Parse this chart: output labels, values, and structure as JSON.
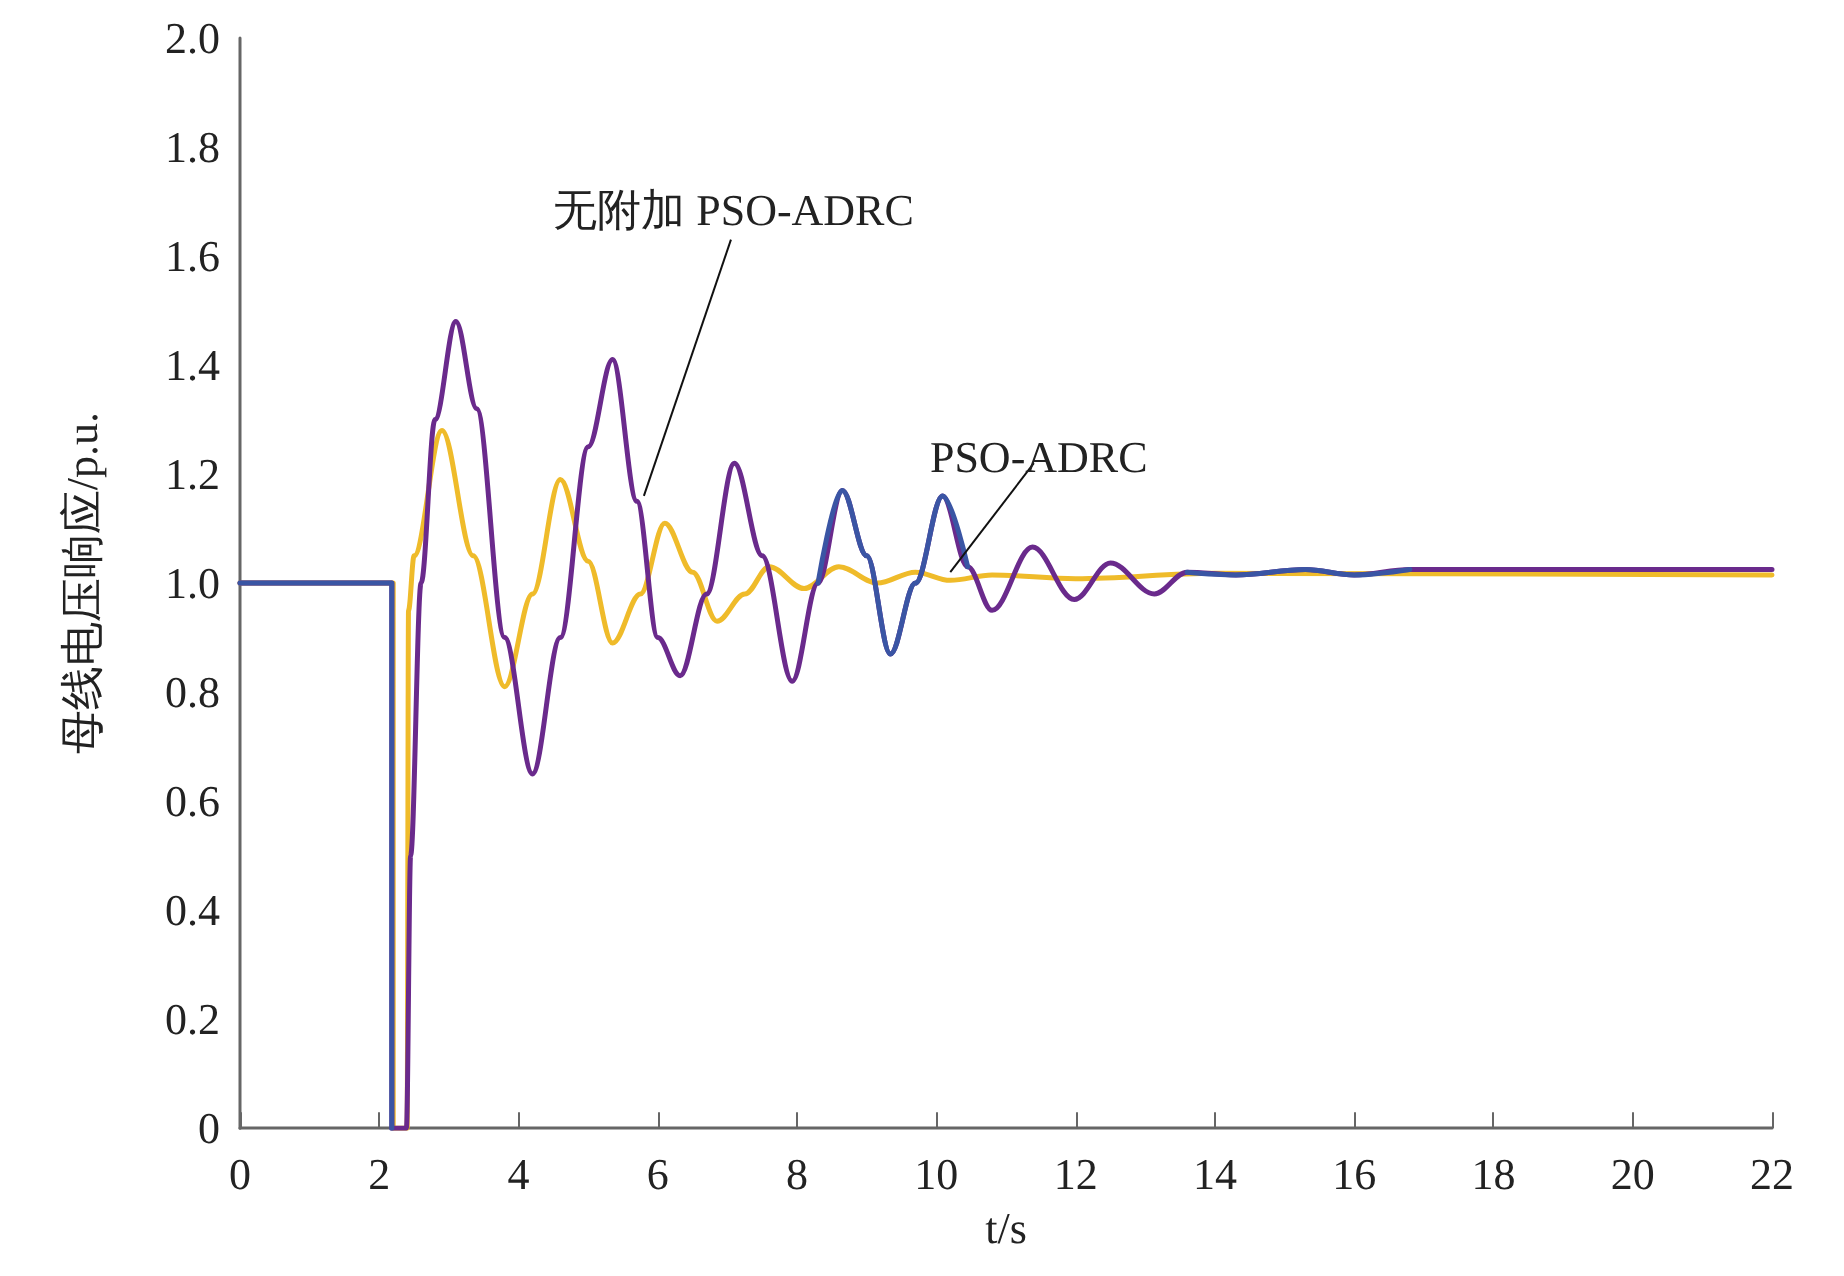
{
  "chart_data": {
    "type": "line",
    "xlabel": "t/s",
    "ylabel": "母线电压响应/p.u.",
    "xlim": [
      0,
      22
    ],
    "xticks": [
      0,
      2,
      4,
      6,
      8,
      10,
      12,
      14,
      16,
      18,
      20,
      22
    ],
    "ylim": [
      0,
      2.0
    ],
    "yticks": [
      {
        "value": 0,
        "label": "0"
      },
      {
        "value": 0.2,
        "label": "0.2"
      },
      {
        "value": 0.4,
        "label": "0.4"
      },
      {
        "value": 0.6,
        "label": "0.6"
      },
      {
        "value": 0.8,
        "label": "0.8"
      },
      {
        "value": 1.0,
        "label": "1.0"
      },
      {
        "value": 1.2,
        "label": "1.2"
      },
      {
        "value": 1.4,
        "label": "1.4"
      },
      {
        "value": 1.6,
        "label": "1.6"
      },
      {
        "value": 1.8,
        "label": "1.8"
      },
      {
        "value": 2.0,
        "label": "2.0"
      }
    ],
    "grid": false,
    "marker": "none",
    "line_style": "solid",
    "annotations": [
      {
        "text": "无附加 PSO-ADRC",
        "x": 5.8,
        "y": 1.16
      },
      {
        "text": "PSO-ADRC",
        "x": 10.2,
        "y": 1.02
      }
    ],
    "series": [
      {
        "color": "#efbb2a",
        "x": [
          0,
          2.2,
          2.2,
          2.4,
          2.42,
          2.5,
          2.9,
          3.35,
          3.8,
          4.2,
          4.6,
          5.0,
          5.35,
          5.75,
          6.1,
          6.5,
          6.85,
          7.25,
          7.6,
          8.1,
          8.6,
          9.15,
          9.7,
          10.2,
          10.8,
          12,
          14,
          22
        ],
        "values": [
          1.0,
          1.0,
          0,
          0,
          0.95,
          1.05,
          1.28,
          1.05,
          0.81,
          0.98,
          1.19,
          1.04,
          0.89,
          0.98,
          1.11,
          1.02,
          0.93,
          0.98,
          1.03,
          0.99,
          1.03,
          1.0,
          1.02,
          1.005,
          1.015,
          1.008,
          1.018,
          1.015
        ]
      },
      {
        "color": "#6a2a8c",
        "x": [
          0,
          2.18,
          2.18,
          2.39,
          2.45,
          2.6,
          2.8,
          3.1,
          3.4,
          3.8,
          4.2,
          4.6,
          5.0,
          5.35,
          5.7,
          6.0,
          6.32,
          6.7,
          7.1,
          7.5,
          7.93,
          8.3,
          8.65,
          9.0,
          9.34,
          9.7,
          10.09,
          10.45,
          10.8,
          11.38,
          11.98,
          12.5,
          13.13,
          13.6,
          14.3,
          15.3,
          16.0,
          16.8,
          22
        ],
        "values": [
          1.0,
          1.0,
          0,
          0,
          0.5,
          1.0,
          1.3,
          1.48,
          1.32,
          0.9,
          0.65,
          0.9,
          1.25,
          1.41,
          1.15,
          0.9,
          0.83,
          0.98,
          1.22,
          1.05,
          0.82,
          1.0,
          1.17,
          1.05,
          0.87,
          1.0,
          1.16,
          1.03,
          0.95,
          1.066,
          0.97,
          1.037,
          0.98,
          1.02,
          1.015,
          1.025,
          1.015,
          1.025,
          1.025
        ]
      },
      {
        "color": "#3a55a4",
        "x": [
          0,
          2.18,
          2.18,
          2.185,
          8.3,
          8.65,
          9.0,
          9.34,
          9.7,
          10.09,
          10.45,
          10.5,
          13.55,
          13.6,
          14.3,
          15.3,
          16.0,
          16.8
        ],
        "values": [
          1.0,
          1.0,
          0,
          null,
          1.0,
          1.17,
          1.05,
          0.87,
          1.0,
          1.16,
          1.03,
          null,
          null,
          1.02,
          1.015,
          1.025,
          1.015,
          1.025
        ]
      }
    ]
  }
}
